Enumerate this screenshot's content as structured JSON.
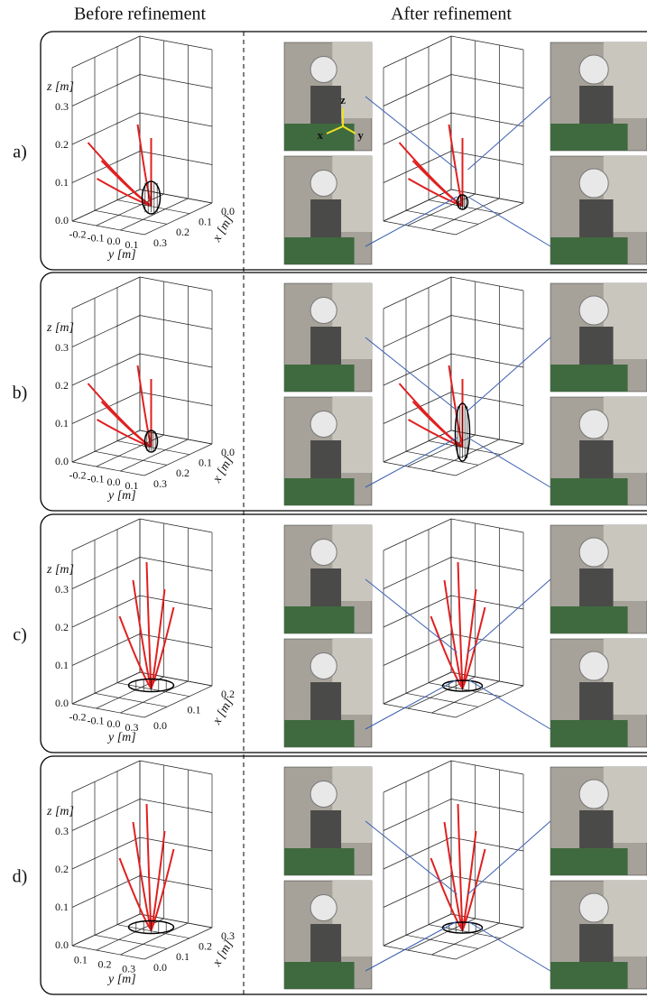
{
  "columns": [
    "Before refinement",
    "After refinement"
  ],
  "panels": [
    {
      "label": "a)",
      "z_label": "z [m]",
      "y_label": "y [m]",
      "x_label": "x [m]",
      "z_ticks": [
        "0.0",
        "0.1",
        "0.2",
        "0.3"
      ],
      "y_ticks": [
        "-0.2",
        "-0.1",
        "0.0",
        "0.1"
      ],
      "x_ticks": [
        "0.0",
        "0.1",
        "0.2",
        "0.3"
      ],
      "photo_axes": [
        "x",
        "y",
        "z"
      ]
    },
    {
      "label": "b)",
      "z_label": "z [m]",
      "y_label": "y [m]",
      "x_label": "x [m]",
      "z_ticks": [
        "0.0",
        "0.1",
        "0.2",
        "0.3"
      ],
      "y_ticks": [
        "-0.2",
        "-0.1",
        "0.0",
        "0.1"
      ],
      "x_ticks": [
        "0.0",
        "0.1",
        "0.2",
        "0.3"
      ]
    },
    {
      "label": "c)",
      "z_label": "z [m]",
      "y_label": "y [m]",
      "x_label": "x [m]",
      "z_ticks": [
        "0.0",
        "0.1",
        "0.2",
        "0.3"
      ],
      "y_ticks": [
        "-0.2",
        "-0.1",
        "0.0",
        "0.3"
      ],
      "x_ticks": [
        "0.2",
        "0.1",
        "0.0"
      ]
    },
    {
      "label": "d)",
      "z_label": "z [m]",
      "y_label": "y [m]",
      "x_label": "x [m]",
      "z_ticks": [
        "0.0",
        "0.1",
        "0.2",
        "0.3"
      ],
      "y_ticks": [
        "0.1",
        "0.2",
        "0.3"
      ],
      "x_ticks": [
        "0.3",
        "0.2",
        "0.1",
        "0.0"
      ]
    }
  ]
}
